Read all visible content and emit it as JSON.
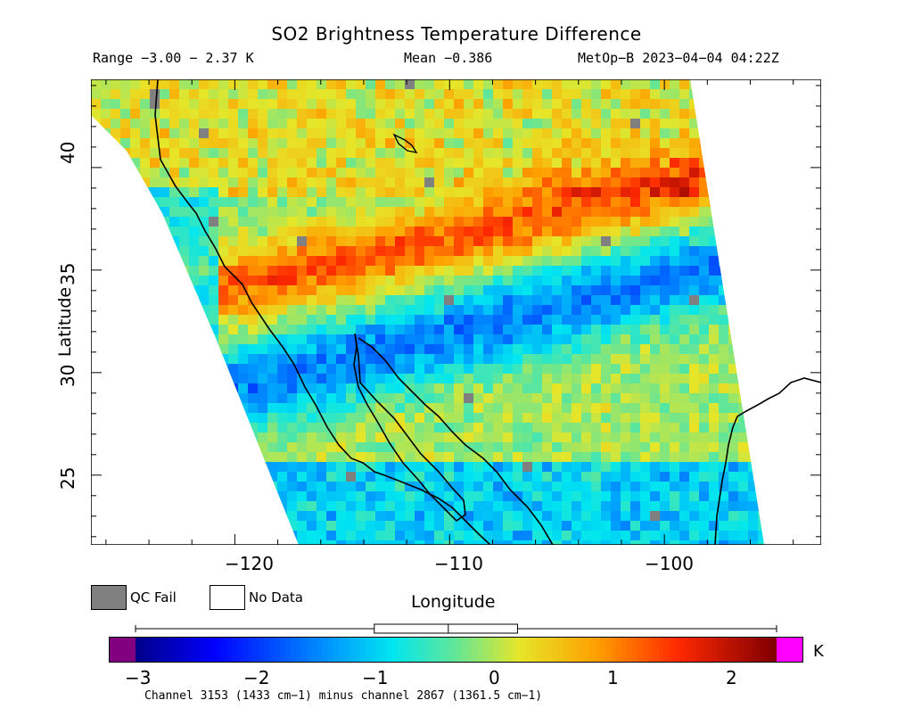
{
  "header": {
    "title": "SO2 Brightness Temperature Difference",
    "range": "Range −3.00 − 2.37 K",
    "mean": "Mean −0.386",
    "satellite": "MetOp−B 2023−04−04 04:22Z"
  },
  "axes": {
    "xlabel": "Longitude",
    "ylabel": "Latitude",
    "x_ticks": [
      "−120",
      "−110",
      "−100"
    ],
    "y_ticks": [
      "40",
      "35",
      "30",
      "25"
    ],
    "lon_range": [
      -126.7,
      -92.7
    ],
    "lat_range": [
      21.6,
      44.3
    ]
  },
  "legend": {
    "qc_fail": "QC Fail",
    "no_data": "No Data",
    "qc_fail_color": "#808080",
    "no_data_color": "#ffffff"
  },
  "colorbar": {
    "min": -3.2,
    "max": 2.45,
    "ticks": [
      "−3",
      "−2",
      "−1",
      "0",
      "1",
      "2"
    ],
    "tick_values": [
      -3,
      -2,
      -1,
      0,
      1,
      2
    ],
    "units": "K",
    "under_color": "#800080",
    "over_color": "#ff00ff",
    "boxplot": {
      "min": -3.0,
      "q1": -1.0,
      "median": -0.38,
      "q3": 0.2,
      "max": 2.37
    }
  },
  "footnote": "Channel 3153 (1433 cm−1) minus channel 2867 (1361.5 cm−1)"
}
